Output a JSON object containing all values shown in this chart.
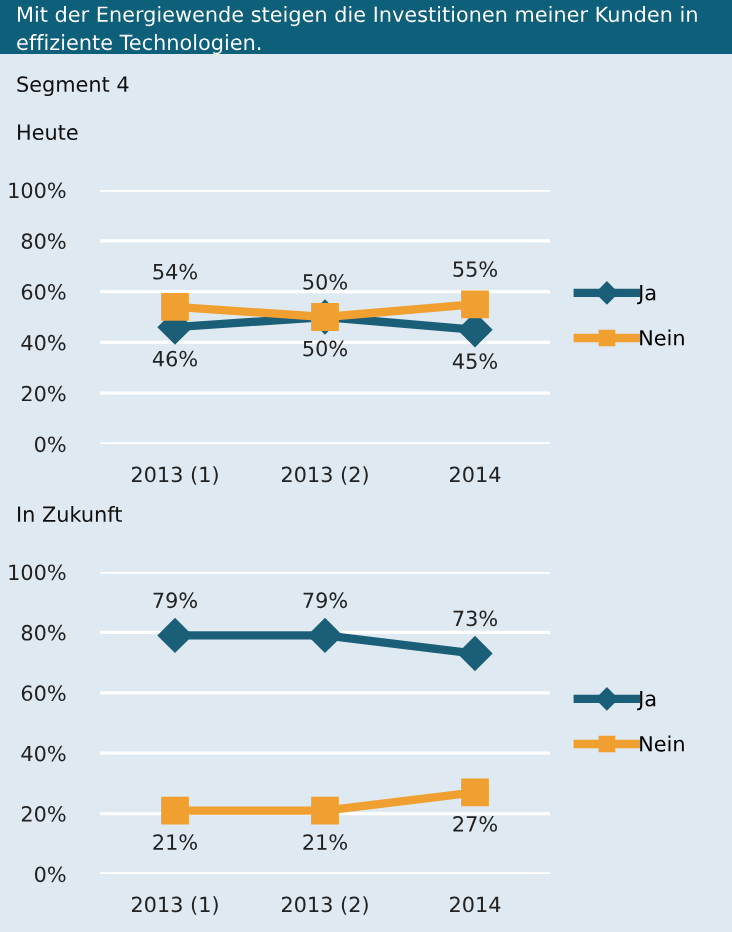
{
  "chart_data": [
    {
      "type": "line",
      "title": "Mit der Energiewende steigen die Investitionen meiner Kunden in effiziente Technologien.",
      "subtitle": "Segment 4",
      "annotations": [
        "Heute"
      ],
      "categories": [
        "2013 (1)",
        "2013 (2)",
        "2014"
      ],
      "series": [
        {
          "name": "Ja",
          "color": "#1a5e78",
          "marker": "diamond",
          "values": [
            46,
            50,
            45
          ],
          "value_labels": [
            "46%",
            "50%",
            "45%"
          ]
        },
        {
          "name": "Nein",
          "color": "#f0a030",
          "marker": "square",
          "values": [
            54,
            50,
            55
          ],
          "value_labels": [
            "54%",
            "50%",
            "55%"
          ]
        }
      ],
      "ylim": [
        0,
        100
      ],
      "yticks": [
        {
          "value": 0,
          "label": "0%"
        },
        {
          "value": 20,
          "label": "20%"
        },
        {
          "value": 40,
          "label": "40%"
        },
        {
          "value": 60,
          "label": "60%"
        },
        {
          "value": 80,
          "label": "80%"
        },
        {
          "value": 100,
          "label": "100%"
        }
      ],
      "grid": "y",
      "legend": "right"
    },
    {
      "type": "line",
      "title": "In Zukunft",
      "categories": [
        "2013 (1)",
        "2013 (2)",
        "2014"
      ],
      "series": [
        {
          "name": "Ja",
          "color": "#1a5e78",
          "marker": "diamond",
          "values": [
            79,
            79,
            73
          ],
          "value_labels": [
            "79%",
            "79%",
            "73%"
          ]
        },
        {
          "name": "Nein",
          "color": "#f0a030",
          "marker": "square",
          "values": [
            21,
            21,
            27
          ],
          "value_labels": [
            "21%",
            "21%",
            "27%"
          ]
        }
      ],
      "ylim": [
        0,
        100
      ],
      "yticks": [
        {
          "value": 0,
          "label": "0%"
        },
        {
          "value": 20,
          "label": "20%"
        },
        {
          "value": 40,
          "label": "40%"
        },
        {
          "value": 60,
          "label": "60%"
        },
        {
          "value": 80,
          "label": "80%"
        },
        {
          "value": 100,
          "label": "100%"
        }
      ],
      "grid": "y",
      "legend": "right"
    }
  ]
}
